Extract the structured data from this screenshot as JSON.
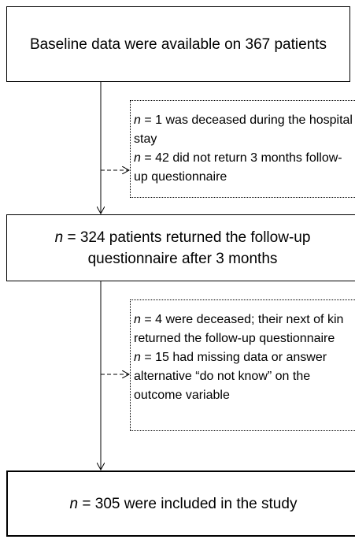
{
  "boxes": [
    {
      "items": [
        {
          "text": "Baseline data were available on 367 patients"
        }
      ]
    },
    {
      "items": [
        {
          "n": "n",
          "text": " = 1 was deceased during the hospital stay"
        },
        {
          "n": "n",
          "text": " = 42 did not return 3 months follow-up questionnaire"
        }
      ]
    },
    {
      "items": [
        {
          "n": "n",
          "text": " = 324 patients returned the follow-up questionnaire after 3 months"
        }
      ]
    },
    {
      "items": [
        {
          "n": "n",
          "text": " = 4 were deceased; their next of kin returned the follow-up questionnaire"
        },
        {
          "n": "n",
          "text": " = 15 had missing data or answer alternative “do not know” on the outcome variable"
        }
      ]
    },
    {
      "items": [
        {
          "n": "n",
          "text": " = 305 were included in the study"
        }
      ]
    }
  ]
}
